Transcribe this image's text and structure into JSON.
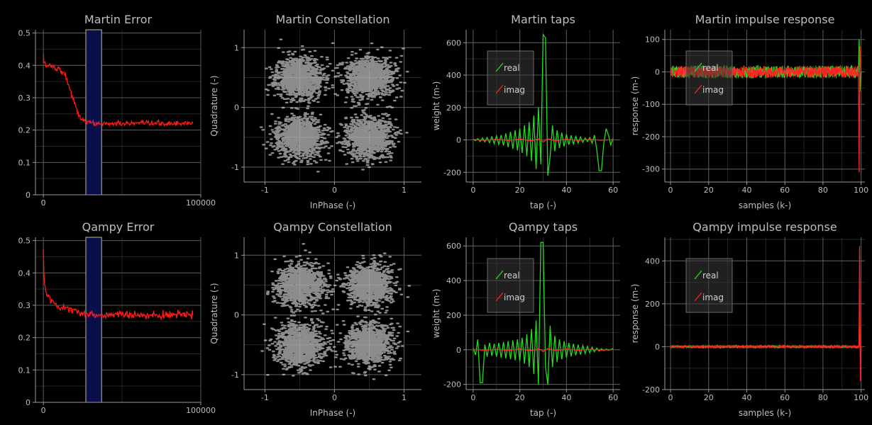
{
  "colors": {
    "background": "#000000",
    "axis": "#9a9a9a",
    "grid_major": "#5a5a5a",
    "grid_minor": "#262626",
    "text": "#bdbdbd",
    "real": "#22dd22",
    "imag": "#ff2222",
    "error": "#ff1a1a",
    "region_fill": "#0a0f4a",
    "region_edge": "#c8b98a",
    "scatter": "#ffffff"
  },
  "chart_data": [
    {
      "id": "martin-error",
      "type": "line",
      "title": "Martin Error",
      "xlabel": "",
      "ylabel": "",
      "xlim": [
        -5000,
        100000
      ],
      "ylim": [
        0,
        0.51
      ],
      "xticks": [
        0,
        100000
      ],
      "xtick_labels": [
        "0",
        "100000"
      ],
      "yticks": [
        0,
        0.1,
        0.2,
        0.3,
        0.4,
        0.5
      ],
      "ytick_labels": [
        "0",
        "0.1",
        "0.2",
        "0.3",
        "0.4",
        "0.5"
      ],
      "region": [
        27000,
        37000
      ],
      "series": [
        {
          "color": "error",
          "noise": 0.004,
          "x": [
            0,
            500,
            1500,
            3000,
            5000,
            8000,
            10000,
            12000,
            14000,
            16000,
            18000,
            20000,
            22000,
            24000,
            26000,
            28000,
            32000,
            40000,
            60000,
            80000,
            95000
          ],
          "y": [
            0.43,
            0.41,
            0.4,
            0.4,
            0.4,
            0.39,
            0.39,
            0.38,
            0.37,
            0.34,
            0.31,
            0.28,
            0.25,
            0.235,
            0.23,
            0.225,
            0.22,
            0.22,
            0.22,
            0.22,
            0.22
          ]
        }
      ]
    },
    {
      "id": "martin-constellation",
      "type": "scatter",
      "title": "Martin Constellation",
      "xlabel": "InPhase (-)",
      "ylabel": "Quadrature (-)",
      "xlim": [
        -1.3,
        1.25
      ],
      "ylim": [
        -1.25,
        1.3
      ],
      "xticks": [
        -1,
        0,
        1
      ],
      "xtick_labels": [
        "-1",
        "0",
        "1"
      ],
      "yticks": [
        -1,
        0,
        1
      ],
      "ytick_labels": [
        "-1",
        "0",
        "1"
      ],
      "clusters": [
        [
          -0.5,
          0.5
        ],
        [
          0.5,
          0.5
        ],
        [
          -0.5,
          -0.5
        ],
        [
          0.5,
          -0.5
        ]
      ],
      "spread": 0.17,
      "points_per_cluster": 1100,
      "seed": 11
    },
    {
      "id": "martin-taps",
      "type": "line",
      "title": "Martin taps",
      "xlabel": "tap (-)",
      "ylabel": "weight (m-)",
      "xlim": [
        -3,
        63
      ],
      "ylim": [
        -260,
        680
      ],
      "xticks": [
        0,
        20,
        40,
        60
      ],
      "xtick_labels": [
        "0",
        "20",
        "40",
        "60"
      ],
      "yticks": [
        -200,
        0,
        200,
        400,
        600
      ],
      "ytick_labels": [
        "-200",
        "0",
        "200",
        "400",
        "600"
      ],
      "legend": {
        "position": "top-left",
        "entries": [
          {
            "label": "real",
            "color": "real"
          },
          {
            "label": "imag",
            "color": "imag"
          }
        ]
      },
      "series": [
        {
          "color": "real",
          "x": [
            0,
            1,
            2,
            3,
            4,
            5,
            6,
            7,
            8,
            9,
            10,
            11,
            12,
            13,
            14,
            15,
            16,
            17,
            18,
            19,
            20,
            21,
            22,
            23,
            24,
            25,
            26,
            27,
            28,
            29,
            30,
            31,
            32,
            33,
            34,
            35,
            36,
            37,
            38,
            39,
            40,
            41,
            42,
            43,
            44,
            45,
            46,
            47,
            48,
            49,
            50,
            51,
            52,
            53,
            54,
            55,
            56,
            57,
            58,
            59,
            60
          ],
          "y": [
            5,
            -5,
            8,
            -10,
            12,
            -12,
            15,
            -18,
            20,
            -22,
            25,
            -28,
            30,
            -35,
            40,
            -45,
            50,
            -55,
            60,
            -65,
            70,
            -80,
            90,
            -100,
            110,
            -130,
            150,
            -180,
            200,
            -150,
            650,
            630,
            -220,
            -100,
            90,
            -70,
            60,
            -50,
            45,
            -40,
            35,
            -30,
            28,
            -25,
            22,
            -20,
            18,
            -15,
            12,
            -10,
            15,
            -20,
            30,
            -60,
            -190,
            -190,
            -20,
            70,
            30,
            -30,
            10
          ]
        },
        {
          "color": "imag",
          "x": [
            0,
            5,
            10,
            15,
            20,
            25,
            28,
            30,
            32,
            35,
            40,
            45,
            50,
            55,
            60
          ],
          "y": [
            3,
            -3,
            4,
            -4,
            5,
            -6,
            8,
            -12,
            8,
            -5,
            4,
            -3,
            3,
            -2,
            2
          ]
        }
      ]
    },
    {
      "id": "martin-impulse",
      "type": "line",
      "title": "Martin impulse response",
      "xlabel": "samples (k-)",
      "ylabel": "response (m-)",
      "xlim": [
        -3,
        102
      ],
      "ylim": [
        -340,
        130
      ],
      "xticks": [
        0,
        20,
        40,
        60,
        80,
        100
      ],
      "xtick_labels": [
        "0",
        "20",
        "40",
        "60",
        "80",
        "100"
      ],
      "yticks": [
        -300,
        -200,
        -100,
        0,
        100
      ],
      "ytick_labels": [
        "-300",
        "-200",
        "-100",
        "0",
        "100"
      ],
      "legend": {
        "position": "top-left",
        "entries": [
          {
            "label": "real",
            "color": "real"
          },
          {
            "label": "imag",
            "color": "imag"
          }
        ]
      },
      "series": [
        {
          "color": "real",
          "noise_band": [
            0,
            98.5,
            20
          ],
          "x": [
            98.6,
            99.0,
            99.4,
            100.0
          ],
          "y": [
            0,
            100,
            -60,
            0
          ]
        },
        {
          "color": "imag",
          "noise_band": [
            0,
            98.5,
            18
          ],
          "x": [
            98.6,
            99.0,
            99.4,
            100.0
          ],
          "y": [
            0,
            -310,
            80,
            0
          ]
        }
      ]
    },
    {
      "id": "qampy-error",
      "type": "line",
      "title": "Qampy Error",
      "xlabel": "",
      "ylabel": "",
      "xlim": [
        -5000,
        100000
      ],
      "ylim": [
        0,
        0.51
      ],
      "xticks": [
        0,
        100000
      ],
      "xtick_labels": [
        "0",
        "100000"
      ],
      "yticks": [
        0,
        0.1,
        0.2,
        0.3,
        0.4,
        0.5
      ],
      "ytick_labels": [
        "0",
        "0.1",
        "0.2",
        "0.3",
        "0.4",
        "0.5"
      ],
      "region": [
        27000,
        37000
      ],
      "series": [
        {
          "color": "error",
          "noise": 0.006,
          "x": [
            0,
            300,
            800,
            1500,
            3000,
            5000,
            8000,
            12000,
            16000,
            20000,
            25000,
            30000,
            40000,
            60000,
            80000,
            95000
          ],
          "y": [
            0.47,
            0.4,
            0.36,
            0.345,
            0.33,
            0.31,
            0.3,
            0.295,
            0.29,
            0.285,
            0.275,
            0.27,
            0.27,
            0.27,
            0.27,
            0.27
          ]
        }
      ]
    },
    {
      "id": "qampy-constellation",
      "type": "scatter",
      "title": "Qampy Constellation",
      "xlabel": "InPhase (-)",
      "ylabel": "Quadrature (-)",
      "xlim": [
        -1.3,
        1.25
      ],
      "ylim": [
        -1.25,
        1.3
      ],
      "xticks": [
        -1,
        0,
        1
      ],
      "xtick_labels": [
        "-1",
        "0",
        "1"
      ],
      "yticks": [
        -1,
        0,
        1
      ],
      "ytick_labels": [
        "-1",
        "0",
        "1"
      ],
      "clusters": [
        [
          -0.5,
          0.5
        ],
        [
          0.5,
          0.5
        ],
        [
          -0.5,
          -0.5
        ],
        [
          0.5,
          -0.5
        ]
      ],
      "spread": 0.17,
      "points_per_cluster": 1100,
      "seed": 29
    },
    {
      "id": "qampy-taps",
      "type": "line",
      "title": "Qampy taps",
      "xlabel": "tap (-)",
      "ylabel": "weight (m-)",
      "xlim": [
        -3,
        63
      ],
      "ylim": [
        -230,
        650
      ],
      "xticks": [
        0,
        20,
        40,
        60
      ],
      "xtick_labels": [
        "0",
        "20",
        "40",
        "60"
      ],
      "yticks": [
        -200,
        0,
        200,
        400,
        600
      ],
      "ytick_labels": [
        "-200",
        "0",
        "200",
        "400",
        "600"
      ],
      "legend": {
        "position": "top-left",
        "entries": [
          {
            "label": "real",
            "color": "real"
          },
          {
            "label": "imag",
            "color": "imag"
          }
        ]
      },
      "series": [
        {
          "color": "real",
          "x": [
            0,
            1,
            2,
            3,
            4,
            5,
            6,
            7,
            8,
            9,
            10,
            11,
            12,
            13,
            14,
            15,
            16,
            17,
            18,
            19,
            20,
            21,
            22,
            23,
            24,
            25,
            26,
            27,
            28,
            29,
            30,
            31,
            32,
            33,
            34,
            35,
            36,
            37,
            38,
            39,
            40,
            41,
            42,
            43,
            44,
            45,
            46,
            47,
            48,
            49,
            50,
            51,
            52,
            53,
            54,
            55,
            56,
            57,
            58,
            59,
            60
          ],
          "y": [
            10,
            -30,
            60,
            -190,
            -190,
            30,
            -40,
            40,
            -35,
            35,
            -40,
            40,
            -45,
            45,
            -50,
            50,
            -55,
            55,
            -60,
            60,
            -65,
            70,
            -80,
            90,
            -100,
            120,
            -140,
            170,
            -200,
            620,
            620,
            -100,
            -200,
            140,
            -100,
            80,
            -70,
            60,
            -55,
            50,
            -45,
            40,
            -38,
            35,
            -32,
            30,
            -28,
            25,
            -22,
            20,
            -18,
            15,
            -12,
            10,
            -8,
            6,
            -5,
            4,
            -3,
            2,
            8
          ]
        },
        {
          "color": "imag",
          "x": [
            0,
            5,
            10,
            15,
            20,
            25,
            28,
            30,
            32,
            35,
            40,
            45,
            50,
            55,
            60
          ],
          "y": [
            2,
            -3,
            3,
            -4,
            5,
            -6,
            8,
            -10,
            8,
            -5,
            4,
            -3,
            3,
            -2,
            2
          ]
        }
      ]
    },
    {
      "id": "qampy-impulse",
      "type": "line",
      "title": "Qampy impulse response",
      "xlabel": "samples (k-)",
      "ylabel": "response (m-)",
      "xlim": [
        -3,
        102
      ],
      "ylim": [
        -200,
        510
      ],
      "xticks": [
        0,
        20,
        40,
        60,
        80,
        100
      ],
      "xtick_labels": [
        "0",
        "20",
        "40",
        "60",
        "80",
        "100"
      ],
      "yticks": [
        -200,
        0,
        200,
        400
      ],
      "ytick_labels": [
        "-200",
        "0",
        "200",
        "400"
      ],
      "legend": {
        "position": "top-left",
        "entries": [
          {
            "label": "real",
            "color": "real"
          },
          {
            "label": "imag",
            "color": "imag"
          }
        ]
      },
      "series": [
        {
          "color": "real",
          "noise_band": [
            0,
            98.8,
            6
          ],
          "x": [
            98.9,
            99.2,
            99.6,
            100.0
          ],
          "y": [
            0,
            200,
            -60,
            0
          ]
        },
        {
          "color": "imag",
          "noise_band": [
            0,
            98.8,
            6
          ],
          "x": [
            98.9,
            99.2,
            99.6,
            100.0
          ],
          "y": [
            0,
            470,
            -160,
            0
          ]
        }
      ]
    }
  ]
}
